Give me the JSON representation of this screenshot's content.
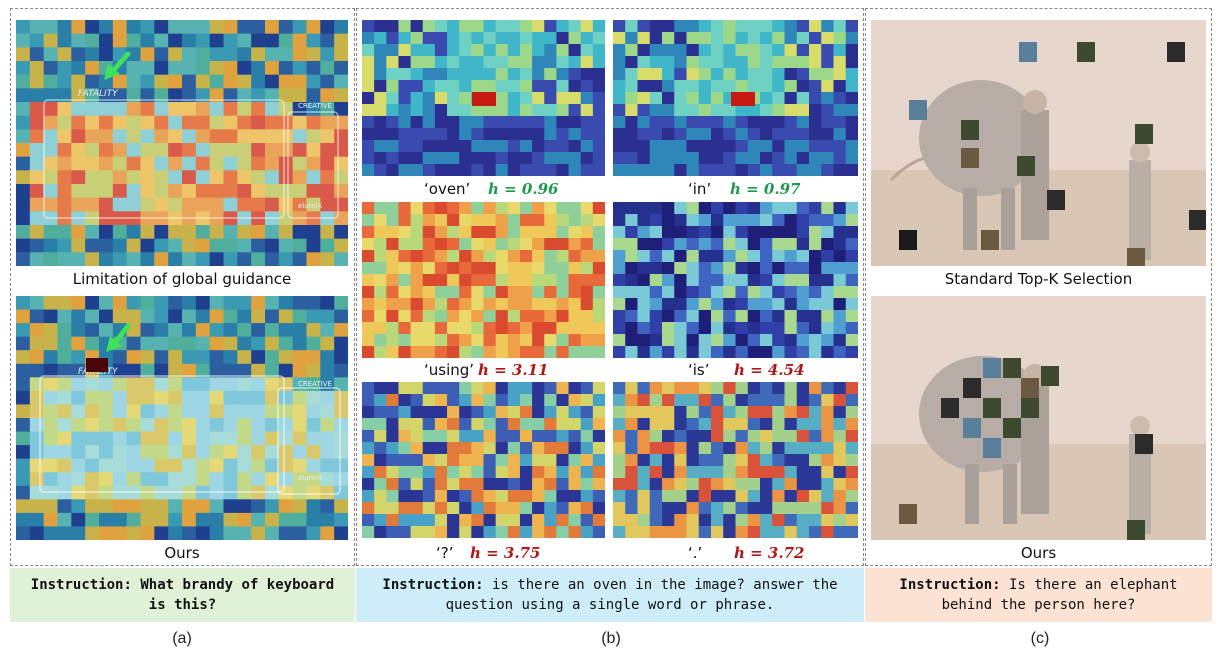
{
  "panel_a": {
    "image_top_caption": "Limitation of global guidance",
    "image_bottom_caption": "Ours",
    "keyboard_brand": "FATALITY",
    "keyboard_brand_right": "CREATIVE",
    "keyboard_badge": "elumiX",
    "instruction_label": "Instruction:",
    "instruction_text": "What brandy of keyboard is this?",
    "sublabel": "(a)"
  },
  "panel_b": {
    "tokens": [
      {
        "token": "‘oven’",
        "h": "h = 0.96",
        "level": "low"
      },
      {
        "token": "‘in’",
        "h": "h = 0.97",
        "level": "low"
      },
      {
        "token": "‘using’",
        "h": "h = 3.11",
        "level": "high"
      },
      {
        "token": "‘is’",
        "h": "h = 4.54",
        "level": "high"
      },
      {
        "token": "‘?’",
        "h": "h = 3.75",
        "level": "high"
      },
      {
        "token": "‘.’",
        "h": "h = 3.72",
        "level": "high"
      }
    ],
    "instruction_label": "Instruction:",
    "instruction_text": "is there an oven in the image? answer the question using a single word or phrase.",
    "sublabel": "(b)"
  },
  "panel_c": {
    "image_top_caption": "Standard Top-K Selection",
    "image_bottom_caption": "Ours",
    "instruction_label": "Instruction:",
    "instruction_text": "Is there an elephant behind the person here?",
    "sublabel": "(c)"
  },
  "colors": {
    "low_entropy": "#1f9a4d",
    "high_entropy": "#b01616",
    "instr_a_bg": "#dff2d8",
    "instr_b_bg": "#cdeef9",
    "instr_c_bg": "#fbe2d2"
  }
}
